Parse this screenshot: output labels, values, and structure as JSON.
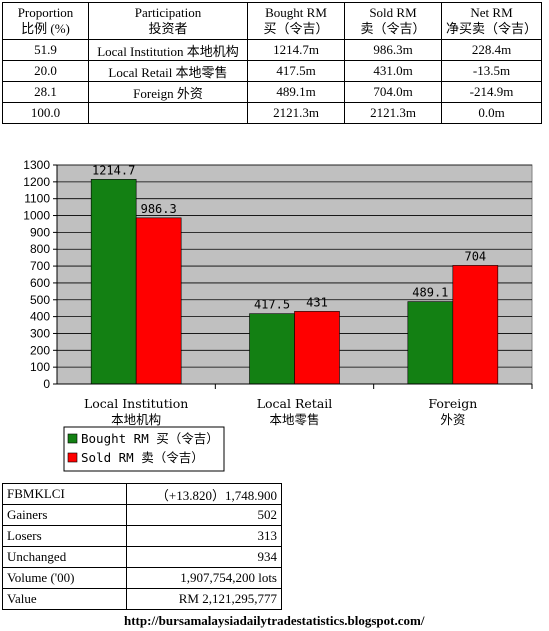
{
  "table": {
    "headers": [
      {
        "line1": "Proportion",
        "line2": "比例 (%)"
      },
      {
        "line1": "Participation",
        "line2": "投资者"
      },
      {
        "line1": "Bought RM",
        "line2": "买（令吉）"
      },
      {
        "line1": "Sold RM",
        "line2": "卖（令吉）"
      },
      {
        "line1": "Net RM",
        "line2": "净买卖（令吉）"
      }
    ],
    "rows": [
      {
        "proportion": "51.9",
        "participation": "Local Institution 本地机构",
        "bought": "1214.7m",
        "sold": "986.3m",
        "net": "228.4m"
      },
      {
        "proportion": "20.0",
        "participation": "Local Retail 本地零售",
        "bought": "417.5m",
        "sold": "431.0m",
        "net": "-13.5m"
      },
      {
        "proportion": "28.1",
        "participation": "Foreign 外资",
        "bought": "489.1m",
        "sold": "704.0m",
        "net": "-214.9m"
      },
      {
        "proportion": "100.0",
        "participation": "",
        "bought": "2121.3m",
        "sold": "2121.3m",
        "net": "0.0m"
      }
    ]
  },
  "chart_data": {
    "type": "bar",
    "categories": [
      {
        "en": "Local Institution",
        "zh": "本地机构"
      },
      {
        "en": "Local Retail",
        "zh": "本地零售"
      },
      {
        "en": "Foreign",
        "zh": "外资"
      }
    ],
    "series": [
      {
        "name": "Bought RM 买（令吉）",
        "values": [
          1214.7,
          417.5,
          489.1
        ],
        "labels": [
          "1214.7",
          "417.5",
          "489.1"
        ],
        "color": "#138013"
      },
      {
        "name": "Sold RM 卖（令吉）",
        "values": [
          986.3,
          431,
          704
        ],
        "labels": [
          "986.3",
          "431",
          "704"
        ],
        "color": "#ff0000"
      }
    ],
    "ylim": [
      0,
      1300
    ],
    "yticks": [
      0,
      100,
      200,
      300,
      400,
      500,
      600,
      700,
      800,
      900,
      1000,
      1100,
      1200,
      1300
    ],
    "grid": true,
    "legend": "bottom-left",
    "plot_background": "#c0c0c0"
  },
  "summary": [
    {
      "key": "FBMKLCI",
      "value": "（+13.820）1,748.900"
    },
    {
      "key": "Gainers",
      "value": "502"
    },
    {
      "key": "Losers",
      "value": "313"
    },
    {
      "key": "Unchanged",
      "value": "934"
    },
    {
      "key": "Volume ('00)",
      "value": "1,907,754,200 lots"
    },
    {
      "key": "Value",
      "value": "RM 2,121,295,777"
    }
  ],
  "source_url": "http://bursamalaysiadailytradestatistics.blogspot.com/"
}
